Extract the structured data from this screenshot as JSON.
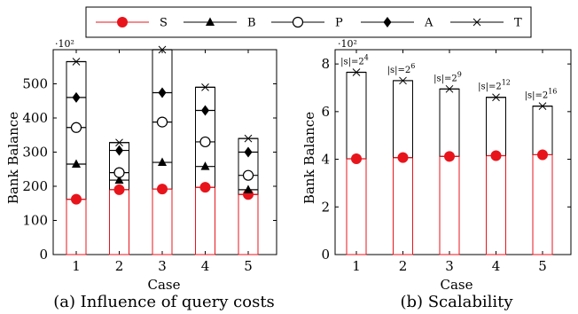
{
  "legend": [
    {
      "label": "S",
      "marker": "circle-filled",
      "color": "#e8141c"
    },
    {
      "label": "B",
      "marker": "triangle",
      "color": "#000000"
    },
    {
      "label": "P",
      "marker": "circle-open",
      "color": "#000000"
    },
    {
      "label": "A",
      "marker": "diamond",
      "color": "#000000"
    },
    {
      "label": "T",
      "marker": "cross",
      "color": "#000000"
    }
  ],
  "chart_data": [
    {
      "type": "bar",
      "caption": "(a) Influence of query costs",
      "xlabel": "Case",
      "ylabel": "Bank Balance",
      "y_multiplier": "·10²",
      "categories": [
        "1",
        "2",
        "3",
        "4",
        "5"
      ],
      "ylim": [
        0,
        600
      ],
      "yticks": [
        "0",
        "100",
        "200",
        "300",
        "400",
        "500"
      ],
      "ytick_values": [
        0,
        100,
        200,
        300,
        400,
        500
      ],
      "series": [
        {
          "name": "S",
          "values": [
            162,
            190,
            192,
            197,
            176
          ]
        },
        {
          "name": "B",
          "values": [
            265,
            218,
            270,
            258,
            190
          ]
        },
        {
          "name": "P",
          "values": [
            372,
            240,
            388,
            330,
            232
          ]
        },
        {
          "name": "A",
          "values": [
            460,
            305,
            474,
            422,
            300
          ]
        },
        {
          "name": "T",
          "values": [
            565,
            328,
            600,
            490,
            340
          ]
        }
      ],
      "bar_colors": {
        "lower": "#e8141c",
        "upper": "#000000"
      }
    },
    {
      "type": "bar",
      "caption": "(b) Scalability",
      "xlabel": "Case",
      "ylabel": "Bank Balance",
      "y_multiplier": "·10²",
      "categories": [
        "1",
        "2",
        "3",
        "4",
        "5"
      ],
      "ylim": [
        0,
        8.6
      ],
      "yticks": [
        "0",
        "2",
        "4",
        "6",
        "8"
      ],
      "ytick_values": [
        0,
        2,
        4,
        6,
        8
      ],
      "series": [
        {
          "name": "S",
          "values": [
            4.02,
            4.07,
            4.12,
            4.15,
            4.19
          ]
        },
        {
          "name": "T",
          "values": [
            7.65,
            7.3,
            6.95,
            6.6,
            6.23
          ]
        }
      ],
      "annotations": [
        {
          "base": "|s|=2",
          "exp": "4"
        },
        {
          "base": "|s|=2",
          "exp": "6"
        },
        {
          "base": "|s|=2",
          "exp": "9"
        },
        {
          "base": "|s|=2",
          "exp": "12"
        },
        {
          "base": "|s|=2",
          "exp": "16"
        }
      ],
      "bar_colors": {
        "lower": "#e8141c",
        "upper": "#000000"
      }
    }
  ]
}
